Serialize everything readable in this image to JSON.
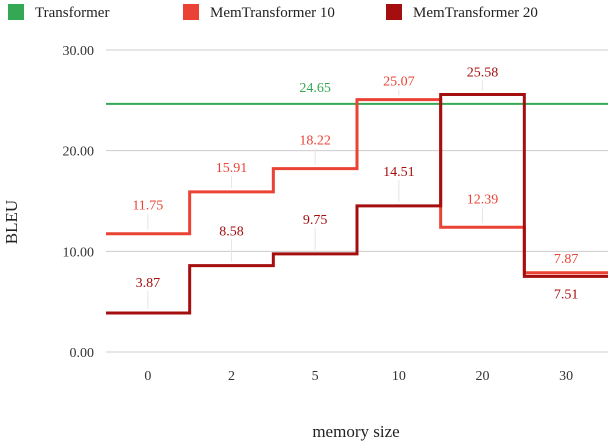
{
  "chart_data": {
    "type": "line",
    "step": true,
    "categories": [
      "0",
      "2",
      "5",
      "10",
      "20",
      "30"
    ],
    "xlabel": "memory size",
    "ylabel": "BLEU",
    "ylim": [
      0,
      30
    ],
    "yticks": [
      "0.00",
      "10.00",
      "20.00",
      "30.00"
    ],
    "grid": true,
    "legend_position": "top",
    "series": [
      {
        "name": "Transformer",
        "color": "#34a853",
        "values": [
          24.65,
          24.65,
          24.65,
          24.65,
          24.65,
          24.65
        ],
        "labels": [
          "",
          "",
          "24.65",
          "",
          "",
          ""
        ]
      },
      {
        "name": "MemTransformer 10",
        "color": "#ea4335",
        "values": [
          11.75,
          15.91,
          18.22,
          25.07,
          12.39,
          7.87
        ],
        "labels": [
          "11.75",
          "15.91",
          "18.22",
          "25.07",
          "12.39",
          "7.87"
        ]
      },
      {
        "name": "MemTransformer 20",
        "color": "#a50e0e",
        "values": [
          3.87,
          8.58,
          9.75,
          14.51,
          25.58,
          7.51
        ],
        "labels": [
          "3.87",
          "8.58",
          "9.75",
          "14.51",
          "25.58",
          "7.51"
        ]
      }
    ]
  }
}
